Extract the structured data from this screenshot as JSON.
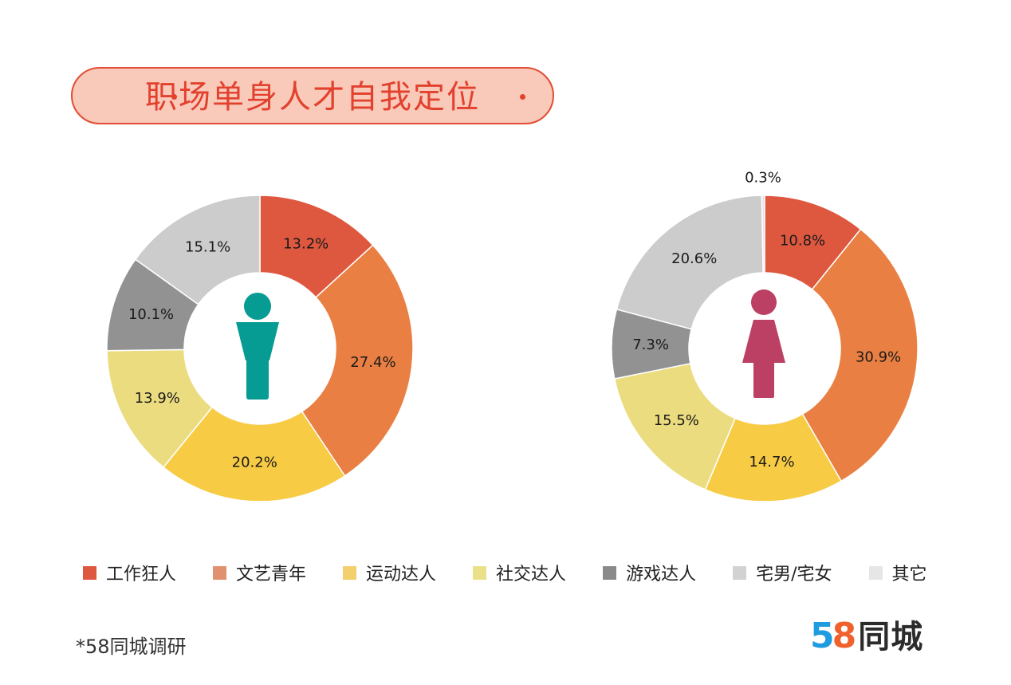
{
  "title": "职场单身人才自我定位",
  "footnote": "*58同城调研",
  "logo": {
    "digit5": "5",
    "digit8": "8",
    "text": "同城"
  },
  "colors": {
    "工作狂人": "#de5840",
    "文艺青年": "#e97f42",
    "运动达人": "#f8cb45",
    "社交达人": "#ecdc80",
    "游戏达人": "#929292",
    "宅男/宅女": "#cccccc",
    "其它": "#e4e4e4",
    "male_icon": "#069b93",
    "female_icon": "#bb4063",
    "title_accent": "#e2412e",
    "title_fill": "#f9c9b9"
  },
  "legend": [
    {
      "label": "工作狂人",
      "color": "#de5840"
    },
    {
      "label": "文艺青年",
      "color": "#e0916d"
    },
    {
      "label": "运动达人",
      "color": "#f4cf6e"
    },
    {
      "label": "社交达人",
      "color": "#ebe08a"
    },
    {
      "label": "游戏达人",
      "color": "#8a8a8a"
    },
    {
      "label": "宅男/宅女",
      "color": "#d2d2d2"
    },
    {
      "label": "其它",
      "color": "#e6e6e6"
    }
  ],
  "chart_data": [
    {
      "type": "pie",
      "group_icon": "male-icon",
      "categories": [
        "工作狂人",
        "文艺青年",
        "运动达人",
        "社交达人",
        "游戏达人",
        "宅男/宅女"
      ],
      "values": [
        13.2,
        27.4,
        20.2,
        13.9,
        10.1,
        15.1
      ],
      "labels": [
        "13.2%",
        "27.4%",
        "20.2%",
        "13.9%",
        "10.1%",
        "15.1%"
      ]
    },
    {
      "type": "pie",
      "group_icon": "female-icon",
      "categories": [
        "工作狂人",
        "文艺青年",
        "运动达人",
        "社交达人",
        "游戏达人",
        "宅男/宅女",
        "其它"
      ],
      "values": [
        10.8,
        30.9,
        14.7,
        15.5,
        7.3,
        20.6,
        0.3
      ],
      "labels": [
        "10.8%",
        "30.9%",
        "14.7%",
        "15.5%",
        "7.3%",
        "20.6%",
        "0.3%"
      ]
    }
  ]
}
